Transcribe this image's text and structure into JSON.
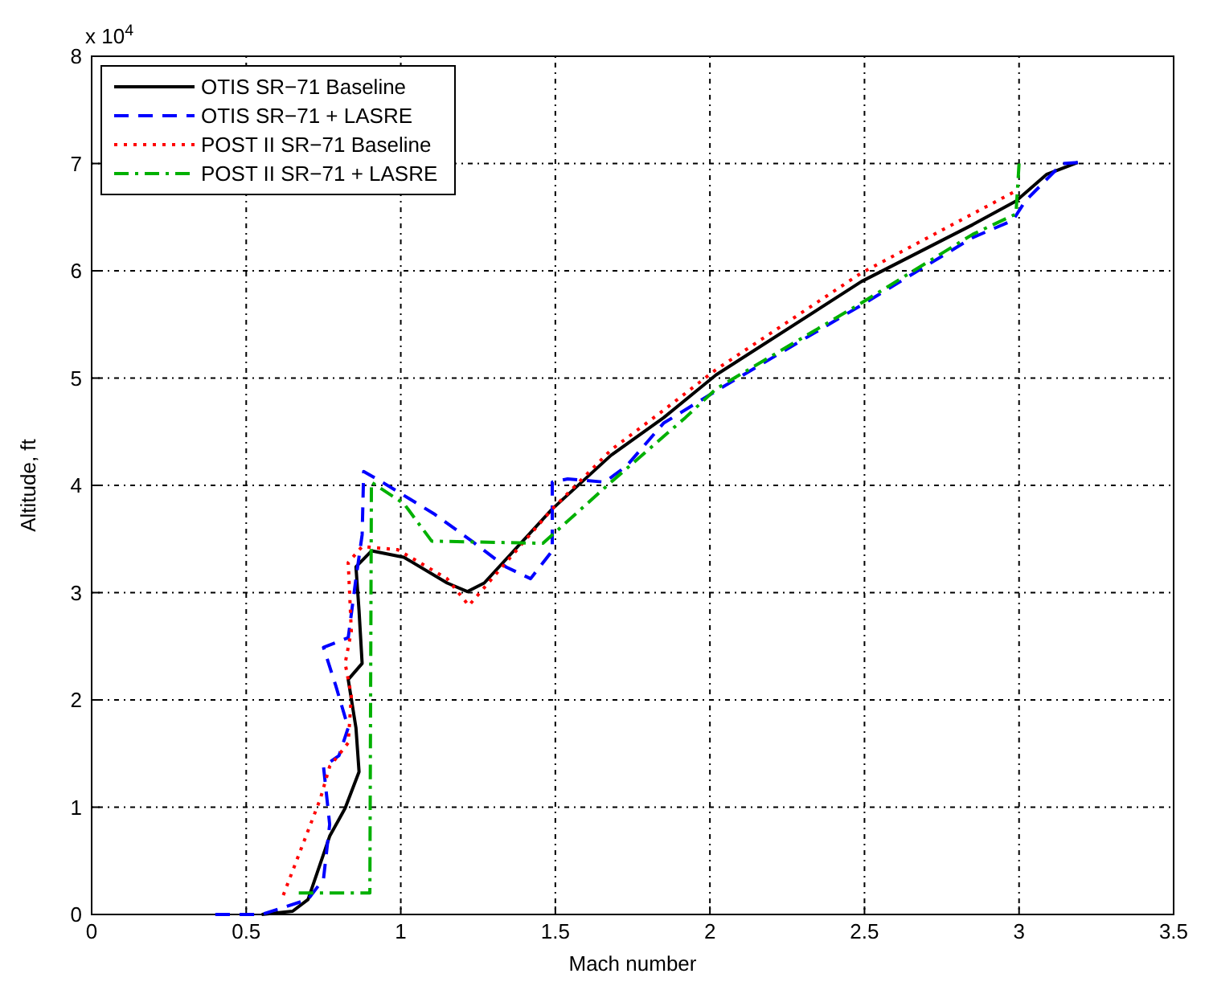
{
  "chart_data": {
    "type": "line",
    "xlabel": "Mach number",
    "ylabel": "Altitude, ft",
    "annotations": [
      "x 10$^{4}$"
    ],
    "xlim": [
      0,
      3.5
    ],
    "xticks": [
      0,
      0.5,
      1,
      1.5,
      2,
      2.5,
      3,
      3.5
    ],
    "ylim": [
      0,
      8
    ],
    "yticks": [
      0,
      1,
      2,
      3,
      4,
      5,
      6,
      7,
      8
    ],
    "grid": true,
    "legend": "top left",
    "series": [
      {
        "name": "OTIS SR−71 Baseline",
        "color": "#000000",
        "line_style": "solid",
        "x": [
          0.55,
          0.65,
          0.7,
          0.77,
          0.82,
          0.865,
          0.855,
          0.83,
          0.875,
          0.865,
          0.855,
          0.906,
          1.01,
          1.15,
          1.215,
          1.27,
          1.49,
          1.68,
          1.85,
          2.02,
          2.49,
          2.85,
          2.99,
          3.09,
          3.19
        ],
        "values": [
          0,
          0.03,
          0.14,
          0.73,
          0.99,
          1.33,
          1.74,
          2.19,
          2.34,
          2.83,
          3.24,
          3.39,
          3.33,
          3.09,
          3.01,
          3.09,
          3.78,
          4.28,
          4.63,
          5.03,
          5.9,
          6.43,
          6.65,
          6.9,
          7.01
        ]
      },
      {
        "name": "OTIS SR−71 + LASRE",
        "color": "#0000ff",
        "line_style": "dashed",
        "x": [
          0.4,
          0.55,
          0.7,
          0.75,
          0.77,
          0.75,
          0.8,
          0.83,
          0.79,
          0.75,
          0.83,
          0.855,
          0.875,
          0.88,
          0.94,
          1.11,
          1.23,
          1.34,
          1.42,
          1.49,
          1.49,
          1.54,
          1.66,
          1.73,
          1.85,
          2.02,
          2.49,
          2.85,
          2.98,
          3.02,
          3.14,
          3.19
        ],
        "values": [
          0,
          0,
          0.14,
          0.33,
          0.84,
          1.38,
          1.48,
          1.74,
          2.13,
          2.49,
          2.58,
          3.13,
          3.54,
          4.13,
          4.03,
          3.73,
          3.48,
          3.24,
          3.13,
          3.39,
          4.03,
          4.06,
          4.03,
          4.18,
          4.58,
          4.88,
          5.68,
          6.31,
          6.47,
          6.65,
          7,
          7.01
        ]
      },
      {
        "name": "POST II SR−71 Baseline",
        "color": "#ff0000",
        "line_style": "dotted",
        "x": [
          0.62,
          0.74,
          0.77,
          0.83,
          0.84,
          0.82,
          0.84,
          0.83,
          0.875,
          0.99,
          1.15,
          1.22,
          1.49,
          1.68,
          1.85,
          2.02,
          2.49,
          2.98
        ],
        "values": [
          0.18,
          1.08,
          1.38,
          1.6,
          2.04,
          2.34,
          2.64,
          3.28,
          3.43,
          3.4,
          3.13,
          2.88,
          3.78,
          4.33,
          4.7,
          5.08,
          5.98,
          6.73
        ]
      },
      {
        "name": "POST II SR−71 + LASRE",
        "color": "#00b000",
        "line_style": "dashdot",
        "x": [
          0.67,
          0.9,
          0.905,
          1.01,
          1.1,
          1.46,
          1.68,
          1.92,
          2.02,
          2.49,
          2.85,
          2.99,
          3.0
        ],
        "values": [
          0.2,
          0.2,
          4.03,
          3.83,
          3.48,
          3.46,
          4.03,
          4.63,
          4.9,
          5.7,
          6.34,
          6.53,
          7
        ]
      }
    ]
  }
}
